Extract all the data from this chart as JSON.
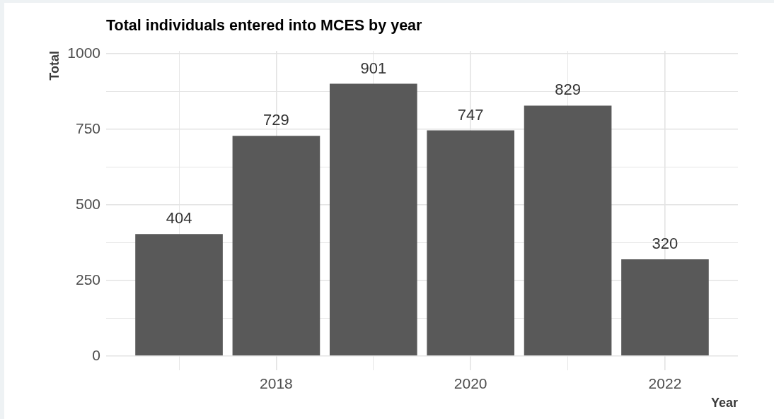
{
  "chart_data": {
    "type": "bar",
    "title": "Total individuals entered into MCES by year",
    "xlabel": "Year",
    "ylabel": "Total",
    "x": [
      2017,
      2018,
      2019,
      2020,
      2021,
      2022
    ],
    "values": [
      404,
      729,
      901,
      747,
      829,
      320
    ],
    "color": "#595959",
    "xlim": [
      2016.25,
      2022.75
    ],
    "xticks": [
      {
        "value": 2017,
        "label": null
      },
      2018,
      {
        "value": 2019,
        "label": null
      },
      2020,
      {
        "value": 2021,
        "label": null
      },
      2022
    ],
    "ylim": [
      -47,
      1010
    ],
    "yticks": [
      0,
      {
        "value": 125,
        "label": null
      },
      250,
      {
        "value": 375,
        "label": null
      },
      500,
      {
        "value": 625,
        "label": null
      },
      750,
      {
        "value": 875,
        "label": null
      },
      1000
    ],
    "grid": true,
    "data_labels": true
  }
}
